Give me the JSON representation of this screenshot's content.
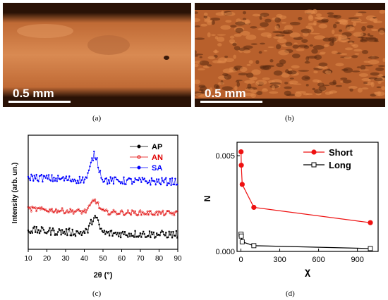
{
  "panels": {
    "a": {
      "caption": "(a)",
      "scale_label": "0.5 mm"
    },
    "b": {
      "caption": "(b)",
      "scale_label": "0.5 mm"
    },
    "c": {
      "caption": "(c)"
    },
    "d": {
      "caption": "(d)"
    }
  },
  "chart_data": [
    {
      "type": "scatter",
      "xlabel": "2θ (°)",
      "ylabel": "Intensity (arb. un.)",
      "xlim": [
        10,
        90
      ],
      "x_ticks": [
        10,
        20,
        30,
        40,
        50,
        60,
        70,
        80,
        90
      ],
      "legend_placement": "top-right",
      "series": [
        {
          "name": "AP",
          "color": "#000000",
          "marker": "square-filled",
          "offset": 0.0,
          "peak_x": 45.5,
          "peak_height": 0.75,
          "noise": 0.18
        },
        {
          "name": "AN",
          "color": "#e00000",
          "marker": "circle-open",
          "offset": 1.0,
          "peak_x": 45.5,
          "peak_height": 0.55,
          "noise": 0.12
        },
        {
          "name": "SA",
          "color": "#0000ff",
          "marker": "circle-filled",
          "offset": 2.5,
          "peak_x": 45.5,
          "peak_height": 1.2,
          "noise": 0.18
        }
      ]
    },
    {
      "type": "line",
      "xlabel": "χ",
      "ylabel": "N",
      "xlim": [
        -30,
        1060
      ],
      "ylim": [
        0.0,
        0.0057
      ],
      "x_ticks": [
        0,
        300,
        600,
        900
      ],
      "y_ticks": [
        0.0,
        0.005
      ],
      "y_tick_labels": [
        "0.000",
        "0.005"
      ],
      "legend_placement": "top-right",
      "series": [
        {
          "name": "Short",
          "color": "#ee1111",
          "marker": "circle-filled",
          "x": [
            1,
            3,
            10,
            100,
            1000
          ],
          "y": [
            0.0052,
            0.0045,
            0.0035,
            0.0023,
            0.0015
          ]
        },
        {
          "name": "Long",
          "color": "#000000",
          "marker": "square-open",
          "x": [
            1,
            3,
            10,
            100,
            1000
          ],
          "y": [
            0.0009,
            0.0008,
            0.0005,
            0.0003,
            0.00015
          ]
        }
      ]
    }
  ]
}
